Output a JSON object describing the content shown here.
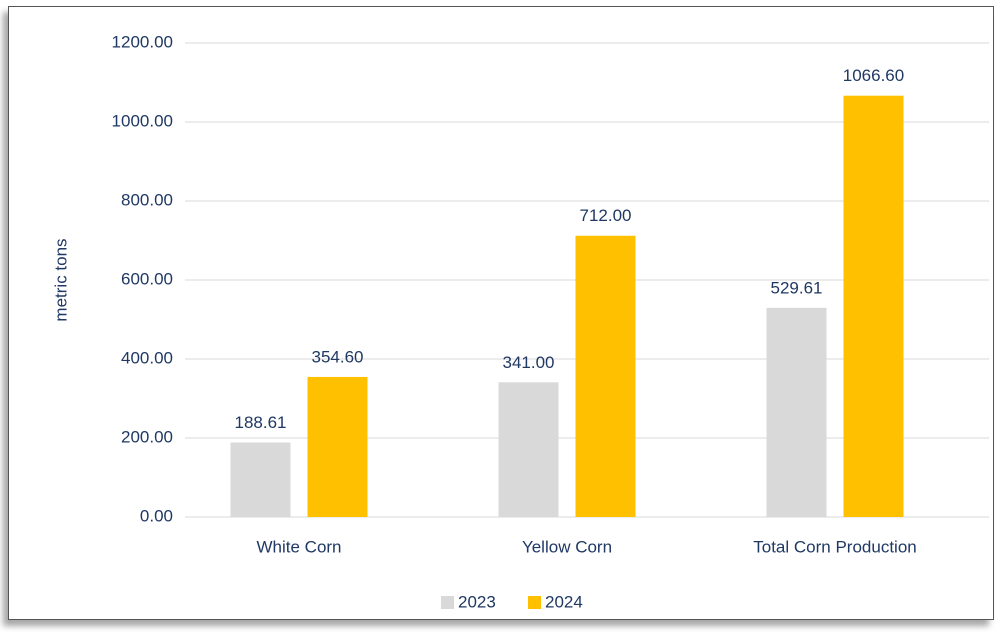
{
  "chart_data": {
    "type": "bar",
    "y_label": "metric tons",
    "categories": [
      "White Corn",
      "Yellow Corn",
      "Total Corn Production"
    ],
    "series": [
      {
        "name": "2023",
        "color": "#d9d9d9",
        "values": [
          188.61,
          341,
          529.61
        ],
        "value_labels": [
          "188.61",
          "341.00",
          "529.61"
        ]
      },
      {
        "name": "2024",
        "color": "#ffc000",
        "values": [
          354.6,
          712,
          1066.6
        ],
        "value_labels": [
          "354.60",
          "712.00",
          "1066.60"
        ]
      }
    ],
    "ylim": [
      0,
      1200
    ],
    "yticks": [
      {
        "value": 0,
        "label": "0.00"
      },
      {
        "value": 200,
        "label": "200.00"
      },
      {
        "value": 400,
        "label": "400.00"
      },
      {
        "value": 600,
        "label": "600.00"
      },
      {
        "value": 800,
        "label": "800.00"
      },
      {
        "value": 1000,
        "label": "1000.00"
      },
      {
        "value": 1200,
        "label": "1200.00"
      }
    ],
    "grid": true,
    "legend": "bottom"
  }
}
